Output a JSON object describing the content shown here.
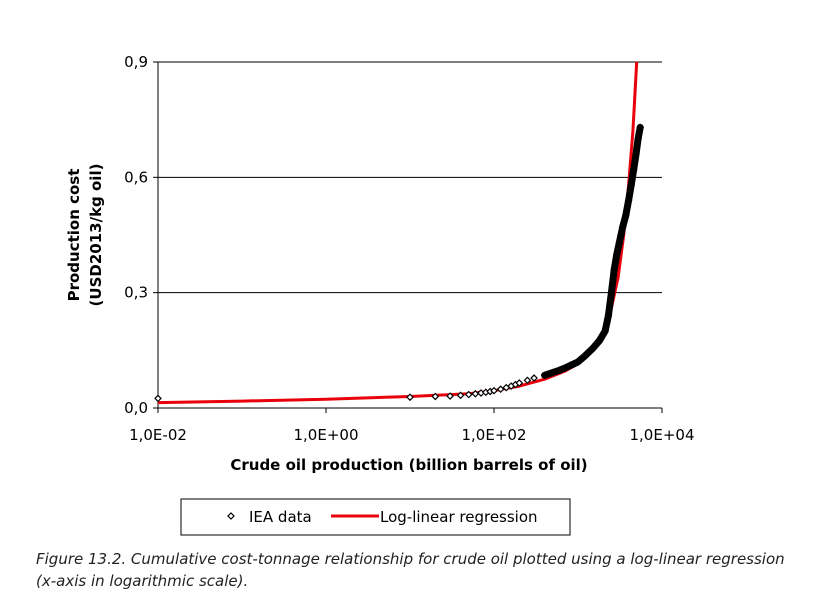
{
  "chart_data": {
    "type": "scatter",
    "x_scale": "log",
    "xlim": [
      0.01,
      10000
    ],
    "ylim": [
      0,
      0.9
    ],
    "x_ticks": [
      "1,0E-02",
      "1,0E+00",
      "1,0E+02",
      "1,0E+04"
    ],
    "x_tick_values": [
      0.01,
      1,
      100,
      10000
    ],
    "y_ticks": [
      "0,0",
      "0,3",
      "0,6",
      "0,9"
    ],
    "y_tick_values": [
      0,
      0.3,
      0.6,
      0.9
    ],
    "grid": "horizontal",
    "xlabel": "Crude oil production (billion barrels of oil)",
    "ylabel_line1": "Production cost",
    "ylabel_line2": "(USD2013/kg oil)",
    "series": [
      {
        "name": "IEA data",
        "marker": "diamond-open",
        "color": "#000000",
        "points": [
          [
            0.01,
            0.025
          ],
          [
            10,
            0.028
          ],
          [
            20,
            0.03
          ],
          [
            30,
            0.031
          ],
          [
            40,
            0.033
          ],
          [
            50,
            0.035
          ],
          [
            60,
            0.037
          ],
          [
            70,
            0.039
          ],
          [
            80,
            0.041
          ],
          [
            90,
            0.043
          ],
          [
            100,
            0.045
          ],
          [
            120,
            0.049
          ],
          [
            140,
            0.053
          ],
          [
            160,
            0.057
          ],
          [
            180,
            0.061
          ],
          [
            200,
            0.065
          ],
          [
            250,
            0.072
          ],
          [
            300,
            0.078
          ],
          [
            400,
            0.085
          ],
          [
            500,
            0.092
          ],
          [
            600,
            0.098
          ],
          [
            700,
            0.104
          ],
          [
            800,
            0.11
          ],
          [
            1000,
            0.12
          ],
          [
            1200,
            0.135
          ],
          [
            1500,
            0.155
          ],
          [
            1800,
            0.175
          ],
          [
            2100,
            0.2
          ],
          [
            2300,
            0.24
          ],
          [
            2500,
            0.3
          ],
          [
            2700,
            0.36
          ],
          [
            2900,
            0.4
          ],
          [
            3100,
            0.43
          ],
          [
            3400,
            0.47
          ],
          [
            3700,
            0.5
          ],
          [
            4000,
            0.54
          ],
          [
            4300,
            0.58
          ],
          [
            4600,
            0.62
          ],
          [
            4900,
            0.66
          ],
          [
            5200,
            0.7
          ],
          [
            5500,
            0.73
          ]
        ]
      },
      {
        "name": "Log-linear regression",
        "marker": "line",
        "color": "#e8000b",
        "points": [
          [
            0.01,
            0.014
          ],
          [
            0.1,
            0.018
          ],
          [
            1,
            0.023
          ],
          [
            10,
            0.03
          ],
          [
            50,
            0.037
          ],
          [
            100,
            0.045
          ],
          [
            200,
            0.057
          ],
          [
            400,
            0.075
          ],
          [
            700,
            0.096
          ],
          [
            1000,
            0.115
          ],
          [
            1500,
            0.15
          ],
          [
            2000,
            0.19
          ],
          [
            2500,
            0.26
          ],
          [
            3000,
            0.34
          ],
          [
            3500,
            0.45
          ],
          [
            4000,
            0.58
          ],
          [
            4500,
            0.72
          ],
          [
            5000,
            0.9
          ]
        ]
      }
    ],
    "legend": {
      "placement": "bottom",
      "items": [
        {
          "label": "IEA data",
          "symbol": "diamond-open"
        },
        {
          "label": "Log-linear regression",
          "symbol": "red-line"
        }
      ]
    }
  },
  "caption": "Figure 13.2. Cumulative cost-tonnage relationship for crude oil plotted using a log-linear regression (x-axis in logarithmic scale)."
}
